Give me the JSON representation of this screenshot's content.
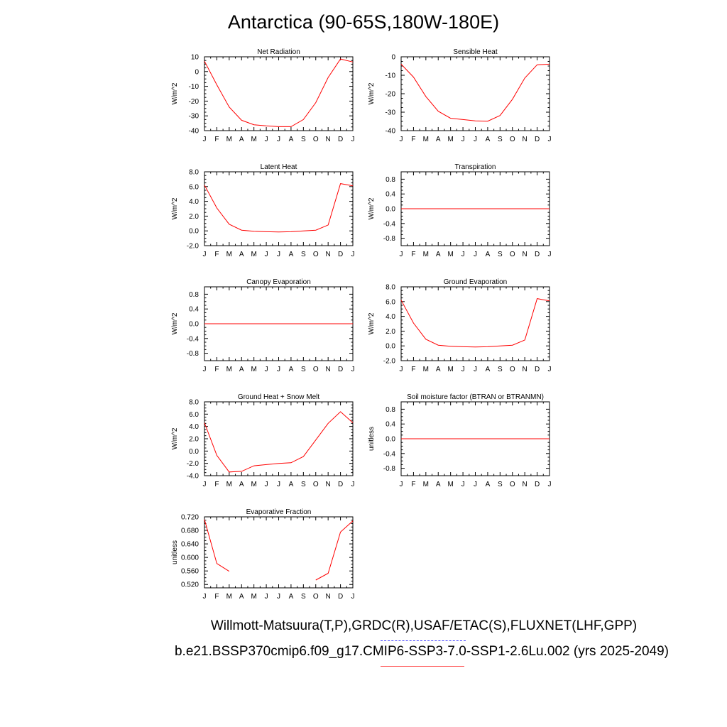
{
  "page": {
    "title": "Antarctica (90-65S,180W-180E)",
    "legend_lines": [
      "Willmott-Matsuura(T,P),GRDC(R),USAF/ETAC(S),FLUXNET(LHF,GPP)",
      "b.e21.BSSP370cmip6.f09_g17.CMIP6-SSP3-7.0-SSP1-2.6Lu.002 (yrs 2025-2049)"
    ],
    "colors": {
      "model": "#ff0000",
      "observations": "#4a4aff"
    }
  },
  "chart_data": [
    {
      "type": "line",
      "title": "Net Radiation",
      "ylabel": "W/m^2",
      "x": [
        "J",
        "F",
        "M",
        "A",
        "M",
        "J",
        "J",
        "A",
        "S",
        "O",
        "N",
        "D",
        "J"
      ],
      "ylim": [
        -40,
        10
      ],
      "yticks": [
        "10",
        "0",
        "-10",
        "-20",
        "-30",
        "-40"
      ],
      "ytick_values": [
        10,
        0,
        -10,
        -20,
        -30,
        -40
      ],
      "series": [
        {
          "values": [
            7,
            -9,
            -24,
            -33,
            -36,
            -36.8,
            -37.3,
            -37.3,
            -32.5,
            -21,
            -4,
            8.5,
            6.5
          ],
          "color": "#ff0000"
        }
      ]
    },
    {
      "type": "line",
      "title": "Sensible Heat",
      "ylabel": "W/m^2",
      "x": [
        "J",
        "F",
        "M",
        "A",
        "M",
        "J",
        "J",
        "A",
        "S",
        "O",
        "N",
        "D",
        "J"
      ],
      "ylim": [
        -40,
        0
      ],
      "yticks": [
        "0",
        "-10",
        "-20",
        "-30",
        "-40"
      ],
      "ytick_values": [
        0,
        -10,
        -20,
        -30,
        -40
      ],
      "series": [
        {
          "values": [
            -4,
            -11,
            -21.5,
            -29.5,
            -33.3,
            -34,
            -34.7,
            -34.9,
            -31.8,
            -23,
            -11.5,
            -4.3,
            -4
          ],
          "color": "#ff0000"
        }
      ]
    },
    {
      "type": "line",
      "title": "Latent Heat",
      "ylabel": "W/m^2",
      "x": [
        "J",
        "F",
        "M",
        "A",
        "M",
        "J",
        "J",
        "A",
        "S",
        "O",
        "N",
        "D",
        "J"
      ],
      "ylim": [
        -2,
        8
      ],
      "yticks": [
        "8.0",
        "6.0",
        "4.0",
        "2.0",
        "0.0",
        "-2.0"
      ],
      "ytick_values": [
        8,
        6,
        4,
        2,
        0,
        -2
      ],
      "series": [
        {
          "values": [
            6.2,
            3.1,
            0.9,
            0.1,
            -0.05,
            -0.12,
            -0.15,
            -0.12,
            0.0,
            0.1,
            0.8,
            6.4,
            6.1
          ],
          "color": "#ff0000"
        }
      ]
    },
    {
      "type": "line",
      "title": "Transpiration",
      "ylabel": "W/m^2",
      "x": [
        "J",
        "F",
        "M",
        "A",
        "M",
        "J",
        "J",
        "A",
        "S",
        "O",
        "N",
        "D",
        "J"
      ],
      "ylim": [
        -1,
        1
      ],
      "yticks": [
        "0.8",
        "0.4",
        "0.0",
        "-0.4",
        "-0.8"
      ],
      "ytick_values": [
        0.8,
        0.4,
        0,
        -0.4,
        -0.8
      ],
      "series": [
        {
          "values": [
            0,
            0,
            0,
            0,
            0,
            0,
            0,
            0,
            0,
            0,
            0,
            0,
            0
          ],
          "color": "#ff0000"
        }
      ]
    },
    {
      "type": "line",
      "title": "Canopy Evaporation",
      "ylabel": "W/m^2",
      "x": [
        "J",
        "F",
        "M",
        "A",
        "M",
        "J",
        "J",
        "A",
        "S",
        "O",
        "N",
        "D",
        "J"
      ],
      "ylim": [
        -1,
        1
      ],
      "yticks": [
        "0.8",
        "0.4",
        "0.0",
        "-0.4",
        "-0.8"
      ],
      "ytick_values": [
        0.8,
        0.4,
        0,
        -0.4,
        -0.8
      ],
      "series": [
        {
          "values": [
            0,
            0,
            0,
            0,
            0,
            0,
            0,
            0,
            0,
            0,
            0,
            0,
            0
          ],
          "color": "#ff0000"
        }
      ]
    },
    {
      "type": "line",
      "title": "Ground Evaporation",
      "ylabel": "W/m^2",
      "x": [
        "J",
        "F",
        "M",
        "A",
        "M",
        "J",
        "J",
        "A",
        "S",
        "O",
        "N",
        "D",
        "J"
      ],
      "ylim": [
        -2,
        8
      ],
      "yticks": [
        "8.0",
        "6.0",
        "4.0",
        "2.0",
        "0.0",
        "-2.0"
      ],
      "ytick_values": [
        8,
        6,
        4,
        2,
        0,
        -2
      ],
      "series": [
        {
          "values": [
            6.2,
            3.1,
            0.9,
            0.1,
            -0.05,
            -0.12,
            -0.15,
            -0.12,
            0.0,
            0.1,
            0.8,
            6.4,
            6.1
          ],
          "color": "#ff0000"
        }
      ]
    },
    {
      "type": "line",
      "title": "Ground Heat + Snow Melt",
      "ylabel": "W/m^2",
      "x": [
        "J",
        "F",
        "M",
        "A",
        "M",
        "J",
        "J",
        "A",
        "S",
        "O",
        "N",
        "D",
        "J"
      ],
      "ylim": [
        -4,
        8
      ],
      "yticks": [
        "8.0",
        "6.0",
        "4.0",
        "2.0",
        "0.0",
        "-2.0",
        "-4.0"
      ],
      "ytick_values": [
        8,
        6,
        4,
        2,
        0,
        -2,
        -4
      ],
      "series": [
        {
          "values": [
            4.6,
            -0.7,
            -3.4,
            -3.3,
            -2.4,
            -2.2,
            -2.0,
            -1.9,
            -0.9,
            1.8,
            4.5,
            6.4,
            4.6
          ],
          "color": "#ff0000"
        }
      ]
    },
    {
      "type": "line",
      "title": "Soil moisture factor (BTRAN or BTRANMN)",
      "ylabel": "unitless",
      "x": [
        "J",
        "F",
        "M",
        "A",
        "M",
        "J",
        "J",
        "A",
        "S",
        "O",
        "N",
        "D",
        "J"
      ],
      "ylim": [
        -1,
        1
      ],
      "yticks": [
        "0.8",
        "0.4",
        "0.0",
        "-0.4",
        "-0.8"
      ],
      "ytick_values": [
        0.8,
        0.4,
        0,
        -0.4,
        -0.8
      ],
      "series": [
        {
          "values": [
            0,
            0,
            0,
            0,
            0,
            0,
            0,
            0,
            0,
            0,
            0,
            0,
            0
          ],
          "color": "#ff0000"
        }
      ]
    },
    {
      "type": "line",
      "title": "Evaporative Fraction",
      "ylabel": "unitless",
      "x": [
        "J",
        "F",
        "M",
        "A",
        "M",
        "J",
        "J",
        "A",
        "S",
        "O",
        "N",
        "D",
        "J"
      ],
      "ylim": [
        0.51,
        0.72
      ],
      "yticks": [
        "0.720",
        "0.680",
        "0.640",
        "0.600",
        "0.560",
        "0.520"
      ],
      "ytick_values": [
        0.72,
        0.68,
        0.64,
        0.6,
        0.56,
        0.52
      ],
      "series": [
        {
          "values": [
            0.712,
            0.582,
            0.559,
            null,
            null,
            null,
            null,
            null,
            null,
            0.533,
            0.553,
            0.675,
            0.708
          ],
          "color": "#ff0000"
        }
      ]
    }
  ]
}
